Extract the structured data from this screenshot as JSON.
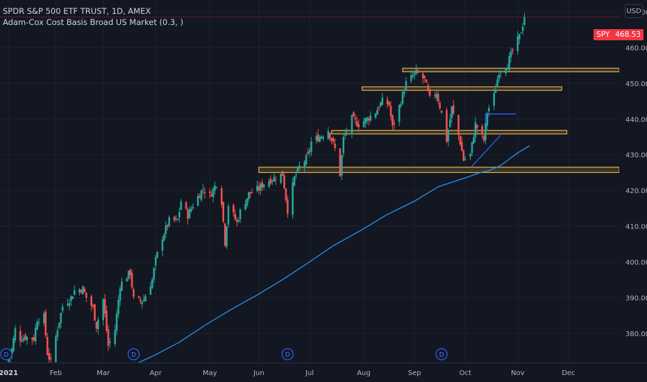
{
  "header": {
    "title": "SPDR S&P 500 ETF TRUST, 1D, AMEX",
    "indicator": "Adam-Cox Cost Basis Broad US Market (0.3, )",
    "currency_button": "USD"
  },
  "price_tag": {
    "ticker": "SPY",
    "value": "468.53"
  },
  "colors": {
    "background": "#131722",
    "up": "#26a69a",
    "down": "#ef5350",
    "cost_basis_line": "#2196f3",
    "zone_stroke": "#e0b050",
    "zone_fill": "#3a3424",
    "last_price_line": "#f23645",
    "axis_text": "#b2b5be",
    "grid": "#1e222d",
    "drawing": "#2962ff"
  },
  "chart_data": {
    "type": "candlestick",
    "title": "SPDR S&P 500 ETF TRUST, 1D, AMEX",
    "ylim": [
      371.8,
      473.3
    ],
    "y_ticks": [
      380,
      390,
      400,
      410,
      420,
      430,
      440,
      450,
      460,
      470
    ],
    "y_tick_labels": [
      "380.00",
      "390.00",
      "400.00",
      "410.00",
      "420.00",
      "430.00",
      "440.00",
      "450.00",
      "460.00",
      "470.00"
    ],
    "x_tick_labels": [
      {
        "label": "2021",
        "date": "2021-01-04",
        "bold": true
      },
      {
        "label": "Feb",
        "date": "2021-02-01"
      },
      {
        "label": "Mar",
        "date": "2021-03-01"
      },
      {
        "label": "Apr",
        "date": "2021-04-01"
      },
      {
        "label": "May",
        "date": "2021-05-03"
      },
      {
        "label": "Jun",
        "date": "2021-06-01"
      },
      {
        "label": "Jul",
        "date": "2021-07-01"
      },
      {
        "label": "Aug",
        "date": "2021-08-02"
      },
      {
        "label": "Sep",
        "date": "2021-09-01"
      },
      {
        "label": "Oct",
        "date": "2021-10-01"
      },
      {
        "label": "Nov",
        "date": "2021-11-01"
      },
      {
        "label": "Dec",
        "date": "2021-12-01"
      }
    ],
    "xlim": [
      "2020-12-30",
      "2021-12-31"
    ],
    "last_price": 468.53,
    "close_path": [
      [
        "2021-01-04",
        373.0
      ],
      [
        "2021-01-06",
        375.5
      ],
      [
        "2021-01-08",
        381.0
      ],
      [
        "2021-01-11",
        378.5
      ],
      [
        "2021-01-14",
        379.0
      ],
      [
        "2021-01-19",
        378.5
      ],
      [
        "2021-01-21",
        384.0
      ],
      [
        "2021-01-25",
        384.5
      ],
      [
        "2021-01-27",
        374.5
      ],
      [
        "2021-01-29",
        371.8
      ],
      [
        "2021-02-02",
        381.5
      ],
      [
        "2021-02-05",
        387.5
      ],
      [
        "2021-02-10",
        390.0
      ],
      [
        "2021-02-12",
        392.0
      ],
      [
        "2021-02-17",
        392.5
      ],
      [
        "2021-02-19",
        390.0
      ],
      [
        "2021-02-23",
        387.0
      ],
      [
        "2021-02-25",
        382.0
      ],
      [
        "2021-03-01",
        389.5
      ],
      [
        "2021-03-04",
        376.5
      ],
      [
        "2021-03-08",
        381.0
      ],
      [
        "2021-03-11",
        393.5
      ],
      [
        "2021-03-15",
        396.0
      ],
      [
        "2021-03-17",
        397.0
      ],
      [
        "2021-03-19",
        389.5
      ],
      [
        "2021-03-23",
        389.0
      ],
      [
        "2021-03-25",
        389.5
      ],
      [
        "2021-03-30",
        395.0
      ],
      [
        "2021-04-01",
        400.5
      ],
      [
        "2021-04-05",
        407.0
      ],
      [
        "2021-04-09",
        411.5
      ],
      [
        "2021-04-14",
        411.5
      ],
      [
        "2021-04-16",
        417.0
      ],
      [
        "2021-04-20",
        413.0
      ],
      [
        "2021-04-23",
        416.0
      ],
      [
        "2021-04-29",
        420.5
      ],
      [
        "2021-05-03",
        418.5
      ],
      [
        "2021-05-07",
        422.0
      ],
      [
        "2021-05-10",
        417.0
      ],
      [
        "2021-05-12",
        405.5
      ],
      [
        "2021-05-14",
        416.0
      ],
      [
        "2021-05-19",
        411.0
      ],
      [
        "2021-05-21",
        414.0
      ],
      [
        "2021-05-26",
        419.0
      ],
      [
        "2021-06-01",
        420.5
      ],
      [
        "2021-06-04",
        422.0
      ],
      [
        "2021-06-10",
        423.5
      ],
      [
        "2021-06-15",
        424.5
      ],
      [
        "2021-06-18",
        414.5
      ],
      [
        "2021-06-22",
        423.5
      ],
      [
        "2021-06-25",
        426.5
      ],
      [
        "2021-06-30",
        429.5
      ],
      [
        "2021-07-02",
        433.5
      ],
      [
        "2021-07-07",
        435.0
      ],
      [
        "2021-07-12",
        437.0
      ],
      [
        "2021-07-16",
        431.5
      ],
      [
        "2021-07-19",
        424.5
      ],
      [
        "2021-07-21",
        434.5
      ],
      [
        "2021-07-26",
        440.0
      ],
      [
        "2021-07-30",
        438.5
      ],
      [
        "2021-08-04",
        440.0
      ],
      [
        "2021-08-09",
        442.0
      ],
      [
        "2021-08-13",
        445.0
      ],
      [
        "2021-08-17",
        444.0
      ],
      [
        "2021-08-19",
        437.5
      ],
      [
        "2021-08-23",
        443.5
      ],
      [
        "2021-08-27",
        450.0
      ],
      [
        "2021-09-02",
        453.0
      ],
      [
        "2021-09-07",
        451.0
      ],
      [
        "2021-09-10",
        445.5
      ],
      [
        "2021-09-14",
        447.5
      ],
      [
        "2021-09-17",
        441.5
      ],
      [
        "2021-09-20",
        434.0
      ],
      [
        "2021-09-23",
        443.0
      ],
      [
        "2021-09-28",
        433.5
      ],
      [
        "2021-09-30",
        428.5
      ],
      [
        "2021-10-04",
        430.0
      ],
      [
        "2021-10-07",
        438.5
      ],
      [
        "2021-10-12",
        434.0
      ],
      [
        "2021-10-14",
        442.0
      ],
      [
        "2021-10-18",
        446.5
      ],
      [
        "2021-10-21",
        453.5
      ],
      [
        "2021-10-26",
        455.5
      ],
      [
        "2021-10-29",
        459.0
      ],
      [
        "2021-11-02",
        463.0
      ],
      [
        "2021-11-04",
        466.5
      ],
      [
        "2021-11-05",
        468.53
      ]
    ],
    "cost_basis_series": {
      "name": "Adam-Cox Cost Basis Broad US Market",
      "points": [
        [
          "2021-03-22",
          371.8
        ],
        [
          "2021-04-01",
          374.0
        ],
        [
          "2021-04-15",
          377.5
        ],
        [
          "2021-05-01",
          382.5
        ],
        [
          "2021-05-15",
          386.5
        ],
        [
          "2021-06-01",
          391.0
        ],
        [
          "2021-06-15",
          395.0
        ],
        [
          "2021-07-01",
          400.0
        ],
        [
          "2021-07-15",
          404.5
        ],
        [
          "2021-08-01",
          409.0
        ],
        [
          "2021-08-15",
          413.0
        ],
        [
          "2021-09-01",
          417.0
        ],
        [
          "2021-09-15",
          421.0
        ],
        [
          "2021-10-01",
          423.5
        ],
        [
          "2021-10-10",
          425.0
        ],
        [
          "2021-10-15",
          425.5
        ],
        [
          "2021-10-22",
          427.0
        ],
        [
          "2021-11-01",
          430.5
        ],
        [
          "2021-11-08",
          432.5
        ]
      ]
    },
    "zones": [
      {
        "date_from": "2021-06-01",
        "date_to": "2021-12-31",
        "from": 425.0,
        "to": 426.5
      },
      {
        "date_from": "2021-07-14",
        "date_to": "2021-11-30",
        "from": 435.8,
        "to": 436.8
      },
      {
        "date_from": "2021-08-01",
        "date_to": "2021-11-27",
        "from": 448.0,
        "to": 449.0
      },
      {
        "date_from": "2021-08-25",
        "date_to": "2021-12-31",
        "from": 453.2,
        "to": 454.2
      }
    ],
    "drawings": {
      "trendline": [
        [
          "2021-10-05",
          426.8
        ],
        [
          "2021-10-22",
          435.5
        ]
      ],
      "flag_line": [
        [
          "2021-10-13",
          438.6
        ],
        [
          "2021-10-13",
          441.4
        ],
        [
          "2021-10-31",
          441.4
        ]
      ]
    },
    "event_markers": [
      {
        "date": "2020-12-31",
        "label": "D"
      },
      {
        "date": "2021-03-19",
        "label": "D"
      },
      {
        "date": "2021-06-18",
        "label": "D"
      },
      {
        "date": "2021-09-17",
        "label": "D"
      }
    ]
  }
}
